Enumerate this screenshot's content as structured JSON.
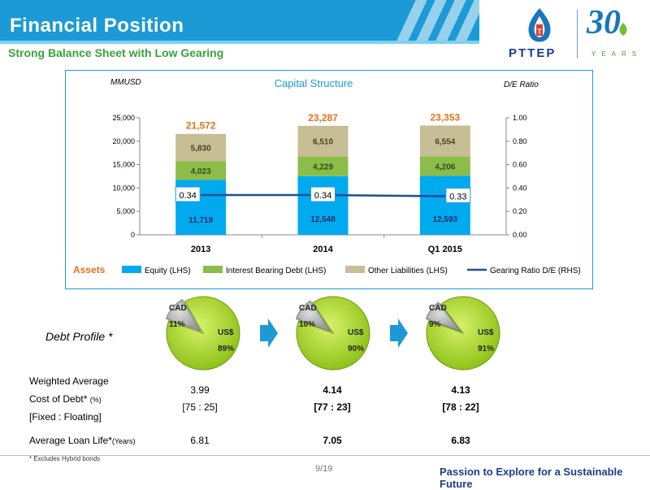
{
  "header": {
    "title": "Financial Position",
    "subtitle": "Strong Balance Sheet with Low Gearing",
    "logo_text": "PTTEP",
    "anniversary_number": "30",
    "anniversary_label": "YEARS"
  },
  "chart_data": {
    "type": "bar",
    "title": "Capital Structure",
    "ylabel_left": "MMUSD",
    "ylabel_right": "D/E Ratio",
    "categories": [
      "2013",
      "2014",
      "Q1 2015"
    ],
    "stacked": true,
    "ylim_left": [
      0,
      25000
    ],
    "ylim_right": [
      0.0,
      1.0
    ],
    "y_ticks_left": [
      "0",
      "5,000",
      "10,000",
      "15,000",
      "20,000",
      "25,000"
    ],
    "y_ticks_right": [
      "0.00",
      "0.20",
      "0.40",
      "0.60",
      "0.80",
      "1.00"
    ],
    "series": [
      {
        "name": "Equity (LHS)",
        "values": [
          11719,
          12548,
          12593
        ],
        "labels": [
          "11,719",
          "12,548",
          "12,593"
        ],
        "color": "#00aaef"
      },
      {
        "name": "Interest Bearing Debt (LHS)",
        "values": [
          4023,
          4229,
          4206
        ],
        "labels": [
          "4,023",
          "4,229",
          "4,206"
        ],
        "color": "#8cbd4a"
      },
      {
        "name": "Other Liabilities (LHS)",
        "values": [
          5830,
          6510,
          6554
        ],
        "labels": [
          "5,830",
          "6,510",
          "6,554"
        ],
        "color": "#c8be96"
      }
    ],
    "totals": [
      "21,572",
      "23,287",
      "23,353"
    ],
    "line": {
      "name": "Gearing Ratio D/E (RHS)",
      "values": [
        0.34,
        0.34,
        0.33
      ],
      "labels": [
        "0.34",
        "0.34",
        "0.33"
      ],
      "color": "#1f4e96"
    },
    "legend_lead": "Assets",
    "legend_position": "bottom",
    "grid": false
  },
  "debt_profile": {
    "label": "Debt Profile  *",
    "pies": [
      {
        "cad_label": "CAD",
        "cad_pct": "11%",
        "usd_label": "US$",
        "usd_pct": "89%",
        "cad_value": 11
      },
      {
        "cad_label": "CAD",
        "cad_pct": "10%",
        "usd_label": "US$",
        "usd_pct": "90%",
        "cad_value": 10
      },
      {
        "cad_label": "CAD",
        "cad_pct": "9%",
        "usd_label": "US$",
        "usd_pct": "91%",
        "cad_value": 9
      }
    ],
    "rows": {
      "cost_label_1": "Weighted Average",
      "cost_label_2": "Cost of Debt*",
      "cost_unit": "(%)",
      "fixed_label": "[Fixed : Floating]",
      "life_label": "Average Loan Life*",
      "life_unit": "(Years)",
      "cost_values": [
        "3.99",
        "4.14",
        "4.13"
      ],
      "ratio_values": [
        "[75 : 25]",
        "[77 : 23]",
        "[78 : 22]"
      ],
      "life_values": [
        "6.81",
        "7.05",
        "6.83"
      ]
    },
    "footnote": "* Excludes Hybrid bonds"
  },
  "footer": {
    "page": "9/19",
    "tagline": "Passion to Explore for a Sustainable Future"
  }
}
